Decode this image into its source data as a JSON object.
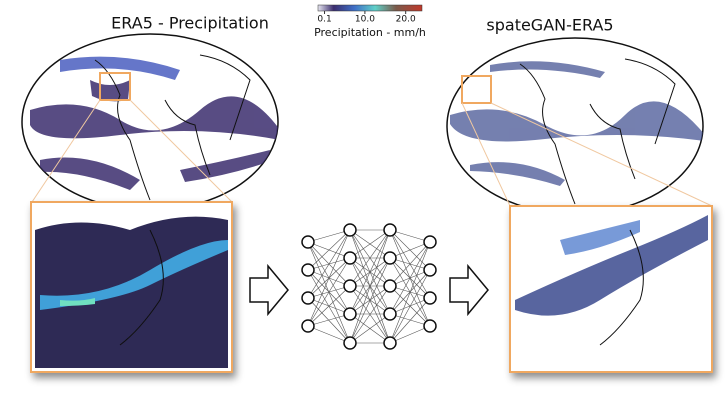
{
  "title_left": "ERA5 - Precipitation",
  "title_right": "spateGAN-ERA5",
  "colorbar": {
    "label": "Precipitation - mm/h",
    "lim": [
      -1.5,
      24
    ],
    "ticks": [
      0.1,
      {
        "value": 10,
        "label": "10.0"
      },
      {
        "value": 20,
        "label": "20.0"
      }
    ]
  }
}
